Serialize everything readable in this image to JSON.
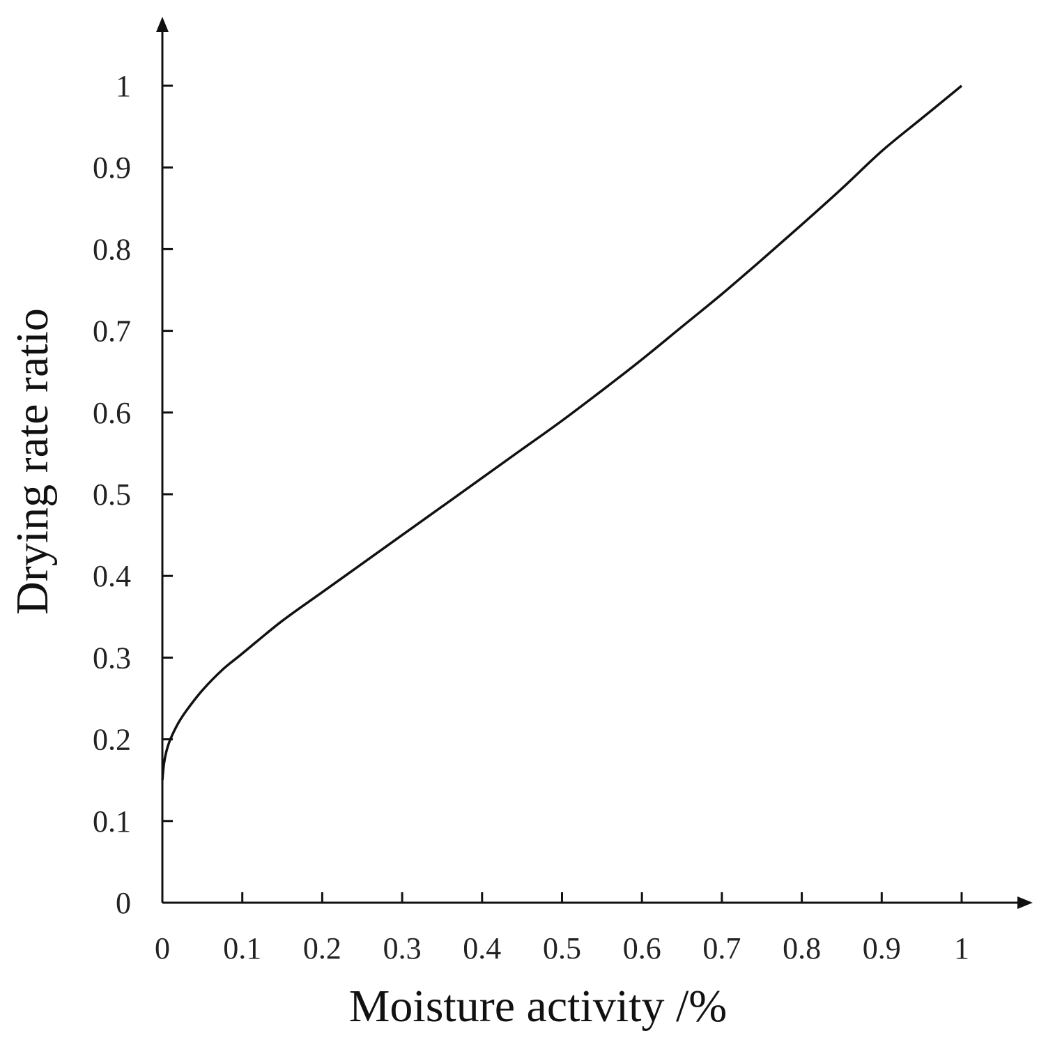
{
  "chart_data": {
    "type": "line",
    "title": "",
    "xlabel": "Moisture activity /%",
    "ylabel": "Drying rate ratio",
    "xlim": [
      0,
      1
    ],
    "ylim": [
      0,
      1
    ],
    "x_ticks": [
      "0",
      "0.1",
      "0.2",
      "0.3",
      "0.4",
      "0.5",
      "0.6",
      "0.7",
      "0.8",
      "0.9",
      "1"
    ],
    "y_ticks": [
      "0",
      "0.1",
      "0.2",
      "0.3",
      "0.4",
      "0.5",
      "0.6",
      "0.7",
      "0.8",
      "0.9",
      "1"
    ],
    "grid": false,
    "legend": "none",
    "series": [
      {
        "x": [
          0,
          0.002,
          0.005,
          0.01,
          0.02,
          0.03,
          0.05,
          0.075,
          0.1,
          0.15,
          0.2,
          0.25,
          0.3,
          0.35,
          0.4,
          0.45,
          0.5,
          0.55,
          0.6,
          0.65,
          0.7,
          0.75,
          0.8,
          0.85,
          0.9,
          0.95,
          1.0
        ],
        "y": [
          0.15,
          0.17,
          0.185,
          0.2,
          0.22,
          0.235,
          0.26,
          0.285,
          0.305,
          0.345,
          0.38,
          0.415,
          0.45,
          0.485,
          0.52,
          0.555,
          0.59,
          0.627,
          0.665,
          0.705,
          0.745,
          0.787,
          0.83,
          0.874,
          0.92,
          0.96,
          1.0
        ]
      }
    ],
    "colors": {
      "line": "#111111",
      "axis": "#111111",
      "text": "#222222"
    }
  }
}
